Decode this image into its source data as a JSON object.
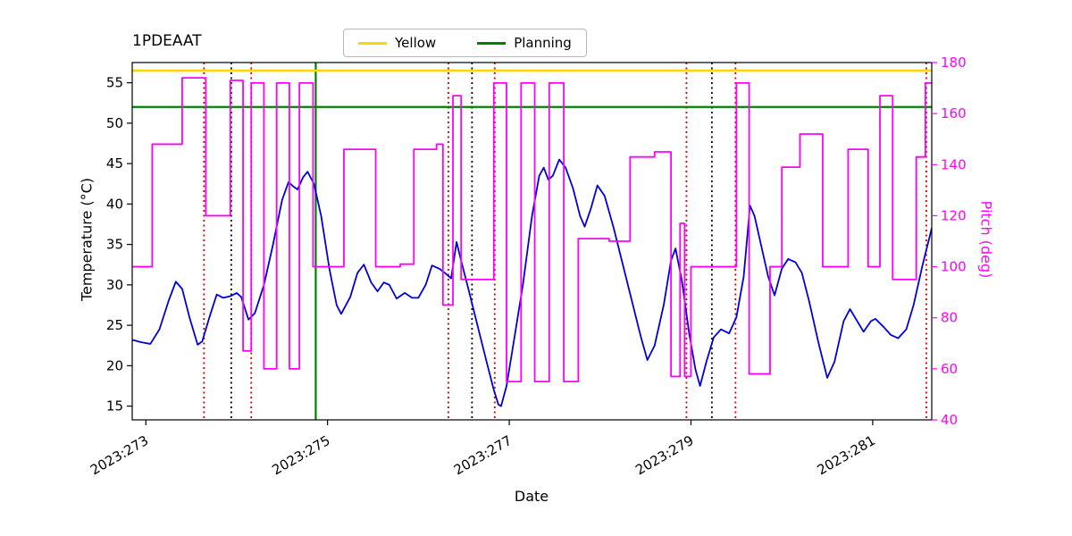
{
  "chart_data": {
    "type": "line",
    "title": "1PDEAAT",
    "xlabel": "Date",
    "ylabel_left": "Temperature (°C)",
    "ylabel_right": "Pitch (deg)",
    "xlim": [
      272.85,
      281.65
    ],
    "ylim_left": [
      13.3,
      57.5
    ],
    "ylim_right": [
      40,
      180
    ],
    "x_ticks": [
      {
        "value": 273,
        "label": "2023:273"
      },
      {
        "value": 275,
        "label": "2023:275"
      },
      {
        "value": 277,
        "label": "2023:277"
      },
      {
        "value": 279,
        "label": "2023:279"
      },
      {
        "value": 281,
        "label": "2023:281"
      }
    ],
    "y_ticks_left": [
      15,
      20,
      25,
      30,
      35,
      40,
      45,
      50,
      55
    ],
    "y_ticks_right": [
      40,
      60,
      80,
      100,
      120,
      140,
      160,
      180
    ],
    "colors": {
      "temperature": "#0000dd",
      "pitch": "#ff00ff",
      "yellow_limit": "#ffd700",
      "planning_limit": "#008000",
      "red_event": "#d40000",
      "black_event": "#000000",
      "green_event": "#008000",
      "axis": "#000000"
    },
    "h_lines": [
      {
        "name": "Yellow",
        "value": 56.5,
        "color_key": "yellow_limit",
        "style": "solid",
        "width": 2.6
      },
      {
        "name": "Planning",
        "value": 52.0,
        "color_key": "planning_limit",
        "style": "solid",
        "width": 2.2
      }
    ],
    "v_lines": [
      {
        "x": 273.64,
        "color_key": "red_event",
        "style": "dotted"
      },
      {
        "x": 273.94,
        "color_key": "black_event",
        "style": "dotted"
      },
      {
        "x": 274.16,
        "color_key": "red_event",
        "style": "dotted"
      },
      {
        "x": 274.87,
        "color_key": "green_event",
        "style": "solid"
      },
      {
        "x": 276.33,
        "color_key": "red_event",
        "style": "dotted"
      },
      {
        "x": 276.59,
        "color_key": "black_event",
        "style": "dotted"
      },
      {
        "x": 276.84,
        "color_key": "red_event",
        "style": "dotted"
      },
      {
        "x": 278.95,
        "color_key": "red_event",
        "style": "dotted"
      },
      {
        "x": 279.23,
        "color_key": "black_event",
        "style": "dotted"
      },
      {
        "x": 279.49,
        "color_key": "red_event",
        "style": "dotted"
      },
      {
        "x": 281.59,
        "color_key": "red_event",
        "style": "dotted"
      }
    ],
    "series": [
      {
        "name": "Temperature",
        "axis": "left",
        "mode": "line",
        "color_key": "temperature",
        "points": [
          [
            272.85,
            23.2
          ],
          [
            272.95,
            22.9
          ],
          [
            273.05,
            22.7
          ],
          [
            273.15,
            24.5
          ],
          [
            273.25,
            28.0
          ],
          [
            273.33,
            30.4
          ],
          [
            273.4,
            29.5
          ],
          [
            273.48,
            26.0
          ],
          [
            273.57,
            22.6
          ],
          [
            273.62,
            23.0
          ],
          [
            273.7,
            26.0
          ],
          [
            273.78,
            28.8
          ],
          [
            273.85,
            28.4
          ],
          [
            273.93,
            28.6
          ],
          [
            274.0,
            29.0
          ],
          [
            274.05,
            28.5
          ],
          [
            274.13,
            25.7
          ],
          [
            274.2,
            26.5
          ],
          [
            274.3,
            30.0
          ],
          [
            274.4,
            35.0
          ],
          [
            274.5,
            40.5
          ],
          [
            274.57,
            42.7
          ],
          [
            274.62,
            42.2
          ],
          [
            274.67,
            41.8
          ],
          [
            274.73,
            43.3
          ],
          [
            274.78,
            44.0
          ],
          [
            274.85,
            42.5
          ],
          [
            274.93,
            38.5
          ],
          [
            275.02,
            32.0
          ],
          [
            275.1,
            27.5
          ],
          [
            275.15,
            26.4
          ],
          [
            275.25,
            28.5
          ],
          [
            275.33,
            31.5
          ],
          [
            275.4,
            32.5
          ],
          [
            275.48,
            30.3
          ],
          [
            275.55,
            29.2
          ],
          [
            275.62,
            30.3
          ],
          [
            275.68,
            30.0
          ],
          [
            275.76,
            28.3
          ],
          [
            275.85,
            29.0
          ],
          [
            275.93,
            28.4
          ],
          [
            276.0,
            28.4
          ],
          [
            276.08,
            30.0
          ],
          [
            276.15,
            32.4
          ],
          [
            276.23,
            32.0
          ],
          [
            276.3,
            31.4
          ],
          [
            276.36,
            30.8
          ],
          [
            276.42,
            35.3
          ],
          [
            276.47,
            33.0
          ],
          [
            276.55,
            29.5
          ],
          [
            276.65,
            25.0
          ],
          [
            276.75,
            20.5
          ],
          [
            276.83,
            17.0
          ],
          [
            276.88,
            15.2
          ],
          [
            276.91,
            15.0
          ],
          [
            276.97,
            17.5
          ],
          [
            277.05,
            23.0
          ],
          [
            277.15,
            30.0
          ],
          [
            277.25,
            38.5
          ],
          [
            277.33,
            43.5
          ],
          [
            277.38,
            44.5
          ],
          [
            277.43,
            43.0
          ],
          [
            277.48,
            43.5
          ],
          [
            277.55,
            45.5
          ],
          [
            277.62,
            44.5
          ],
          [
            277.7,
            42.0
          ],
          [
            277.78,
            38.5
          ],
          [
            277.83,
            37.2
          ],
          [
            277.9,
            39.5
          ],
          [
            277.97,
            42.3
          ],
          [
            278.05,
            41.0
          ],
          [
            278.15,
            37.0
          ],
          [
            278.25,
            32.5
          ],
          [
            278.35,
            28.0
          ],
          [
            278.45,
            23.5
          ],
          [
            278.52,
            20.7
          ],
          [
            278.6,
            22.5
          ],
          [
            278.7,
            27.5
          ],
          [
            278.78,
            33.0
          ],
          [
            278.83,
            34.5
          ],
          [
            278.9,
            30.5
          ],
          [
            278.98,
            24.0
          ],
          [
            279.05,
            19.5
          ],
          [
            279.1,
            17.5
          ],
          [
            279.17,
            20.5
          ],
          [
            279.25,
            23.5
          ],
          [
            279.33,
            24.5
          ],
          [
            279.42,
            24.0
          ],
          [
            279.5,
            26.0
          ],
          [
            279.58,
            31.0
          ],
          [
            279.65,
            39.8
          ],
          [
            279.7,
            38.5
          ],
          [
            279.78,
            34.5
          ],
          [
            279.85,
            31.0
          ],
          [
            279.92,
            28.7
          ],
          [
            280.0,
            32.0
          ],
          [
            280.07,
            33.2
          ],
          [
            280.15,
            32.8
          ],
          [
            280.22,
            31.5
          ],
          [
            280.3,
            28.0
          ],
          [
            280.4,
            23.0
          ],
          [
            280.5,
            18.5
          ],
          [
            280.58,
            20.5
          ],
          [
            280.68,
            25.5
          ],
          [
            280.75,
            27.0
          ],
          [
            280.83,
            25.5
          ],
          [
            280.9,
            24.2
          ],
          [
            280.98,
            25.5
          ],
          [
            281.03,
            25.8
          ],
          [
            281.12,
            24.8
          ],
          [
            281.2,
            23.8
          ],
          [
            281.28,
            23.4
          ],
          [
            281.37,
            24.5
          ],
          [
            281.45,
            27.5
          ],
          [
            281.55,
            32.5
          ],
          [
            281.65,
            37.0
          ]
        ]
      },
      {
        "name": "Pitch",
        "axis": "right",
        "mode": "step",
        "color_key": "pitch",
        "points": [
          [
            272.85,
            100
          ],
          [
            273.07,
            148
          ],
          [
            273.4,
            174
          ],
          [
            273.66,
            120
          ],
          [
            273.93,
            173
          ],
          [
            274.07,
            67
          ],
          [
            274.16,
            172
          ],
          [
            274.3,
            60
          ],
          [
            274.44,
            172
          ],
          [
            274.58,
            60
          ],
          [
            274.69,
            172
          ],
          [
            274.84,
            100
          ],
          [
            275.18,
            146
          ],
          [
            275.53,
            100
          ],
          [
            275.8,
            101
          ],
          [
            275.95,
            146
          ],
          [
            276.2,
            148
          ],
          [
            276.27,
            85
          ],
          [
            276.38,
            167
          ],
          [
            276.47,
            95
          ],
          [
            276.83,
            172
          ],
          [
            276.97,
            55
          ],
          [
            277.13,
            172
          ],
          [
            277.28,
            55
          ],
          [
            277.44,
            172
          ],
          [
            277.6,
            55
          ],
          [
            277.76,
            111
          ],
          [
            278.1,
            110
          ],
          [
            278.33,
            143
          ],
          [
            278.6,
            145
          ],
          [
            278.78,
            57
          ],
          [
            278.88,
            117
          ],
          [
            278.93,
            57
          ],
          [
            279.0,
            100
          ],
          [
            279.5,
            172
          ],
          [
            279.64,
            58
          ],
          [
            279.87,
            100
          ],
          [
            280.0,
            139
          ],
          [
            280.2,
            152
          ],
          [
            280.45,
            100
          ],
          [
            280.73,
            146
          ],
          [
            280.95,
            100
          ],
          [
            281.08,
            167
          ],
          [
            281.22,
            95
          ],
          [
            281.48,
            143
          ],
          [
            281.58,
            172
          ]
        ]
      }
    ]
  },
  "legend": {
    "items": [
      {
        "label": "Yellow",
        "color": "#ffd700"
      },
      {
        "label": "Planning",
        "color": "#008000"
      }
    ]
  }
}
